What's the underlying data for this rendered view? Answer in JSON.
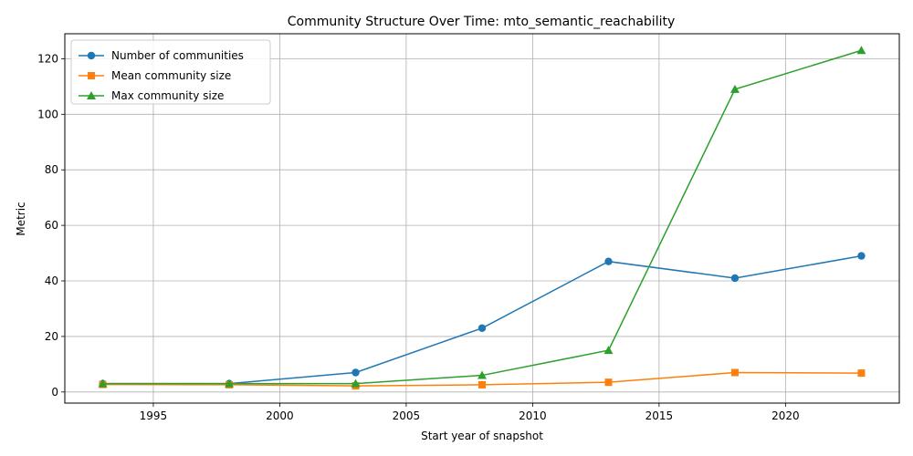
{
  "chart_data": {
    "type": "line",
    "title": "Community Structure Over Time: mto_semantic_reachability",
    "xlabel": "Start year of snapshot",
    "ylabel": "Metric",
    "x": [
      1993,
      1998,
      2003,
      2008,
      2013,
      2018,
      2023
    ],
    "xlim": [
      1991.5,
      2024.5
    ],
    "ylim": [
      -4,
      129
    ],
    "xticks": [
      1995,
      2000,
      2005,
      2010,
      2015,
      2020
    ],
    "yticks": [
      0,
      20,
      40,
      60,
      80,
      100,
      120
    ],
    "grid": true,
    "legend_position": "upper-left",
    "series": [
      {
        "name": "Number of communities",
        "color": "#1f77b4",
        "marker": "circle",
        "values": [
          3,
          3,
          7,
          23,
          47,
          41,
          49
        ]
      },
      {
        "name": "Mean community size",
        "color": "#ff7f0e",
        "marker": "square",
        "values": [
          2.7,
          2.6,
          2.2,
          2.6,
          3.5,
          7.0,
          6.8
        ]
      },
      {
        "name": "Max community size",
        "color": "#2ca02c",
        "marker": "triangle",
        "values": [
          3,
          3,
          3,
          6,
          15,
          109,
          123
        ]
      }
    ]
  }
}
